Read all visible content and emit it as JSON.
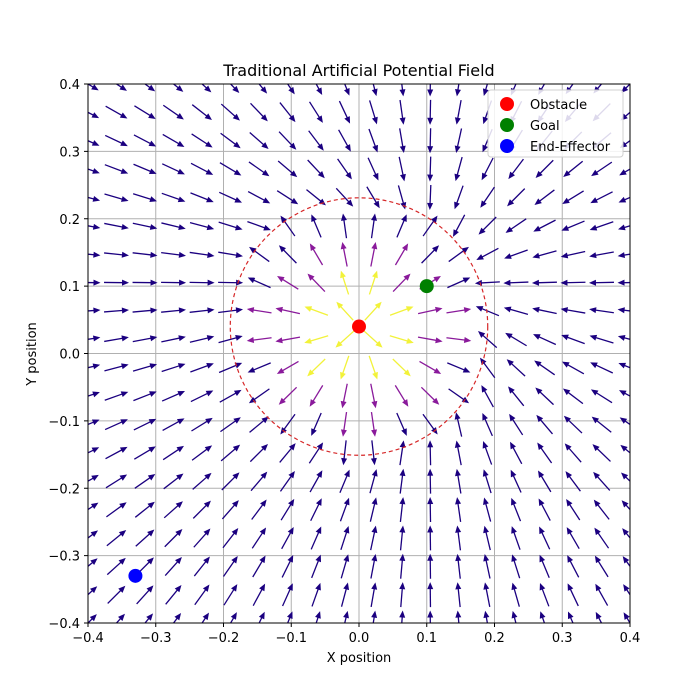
{
  "chart_data": {
    "type": "quiver",
    "title": "Traditional Artificial Potential Field",
    "xlabel": "X position",
    "ylabel": "Y position",
    "xlim": [
      -0.4,
      0.4
    ],
    "ylim": [
      -0.4,
      0.4
    ],
    "x_ticks": [
      -0.4,
      -0.3,
      -0.2,
      -0.1,
      0.0,
      0.1,
      0.2,
      0.3,
      0.4
    ],
    "y_ticks": [
      -0.4,
      -0.3,
      -0.2,
      -0.1,
      0.0,
      0.1,
      0.2,
      0.3,
      0.4
    ],
    "x_tick_labels": [
      "−0.4",
      "−0.3",
      "−0.2",
      "−0.1",
      "0.0",
      "0.1",
      "0.2",
      "0.3",
      "0.4"
    ],
    "y_tick_labels": [
      "−0.4",
      "−0.3",
      "−0.2",
      "−0.1",
      "0.0",
      "0.1",
      "0.2",
      "0.3",
      "0.4"
    ],
    "grid": true,
    "legend_position": "top-right",
    "field": {
      "grid_n": 20,
      "grid_range": [
        -0.4,
        0.4
      ],
      "obstacle_influence_radius": 0.19,
      "arrow_colors": [
        "#1b0080",
        "#8a1a9b",
        "#f2f23a"
      ]
    },
    "influence_circle": {
      "center": [
        0.0,
        0.04
      ],
      "radius": 0.19,
      "color": "#d62728"
    },
    "points": [
      {
        "label": "Obstacle",
        "x": 0.0,
        "y": 0.04,
        "color": "#ff0000"
      },
      {
        "label": "Goal",
        "x": 0.1,
        "y": 0.1,
        "color": "#008000"
      },
      {
        "label": "End-Effector",
        "x": -0.33,
        "y": -0.33,
        "color": "#0000ff"
      }
    ]
  }
}
